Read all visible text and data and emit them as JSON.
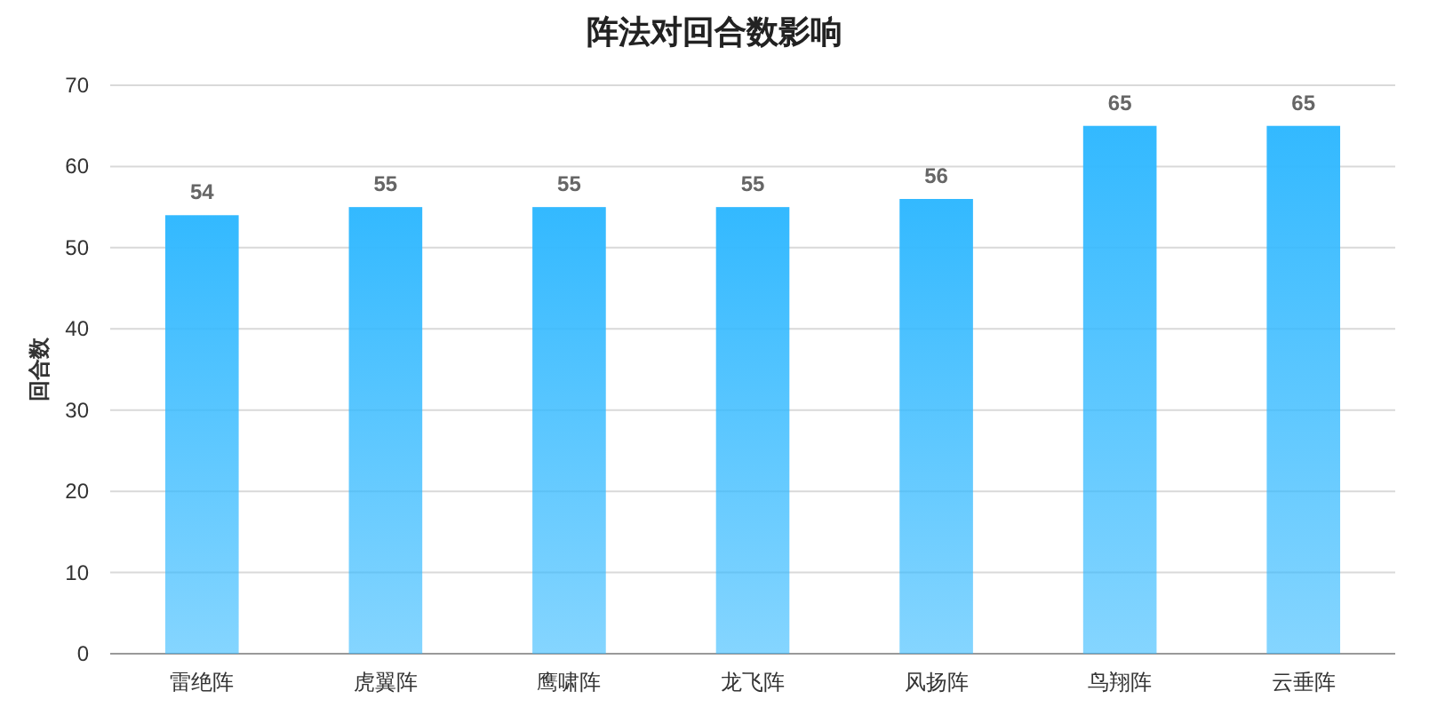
{
  "chart_data": {
    "type": "bar",
    "title": "阵法对回合数影响",
    "ylabel": "回合数",
    "categories": [
      "雷绝阵",
      "虎翼阵",
      "鹰啸阵",
      "龙飞阵",
      "风扬阵",
      "鸟翔阵",
      "云垂阵"
    ],
    "series": [
      {
        "color": "#33b9ff",
        "values": [
          54,
          55,
          55,
          55,
          56,
          65,
          65
        ]
      }
    ],
    "ylim": [
      0,
      70
    ],
    "yticks": [
      0,
      10,
      20,
      30,
      40,
      50,
      60,
      70
    ],
    "grid": "y",
    "data_labels": true
  }
}
